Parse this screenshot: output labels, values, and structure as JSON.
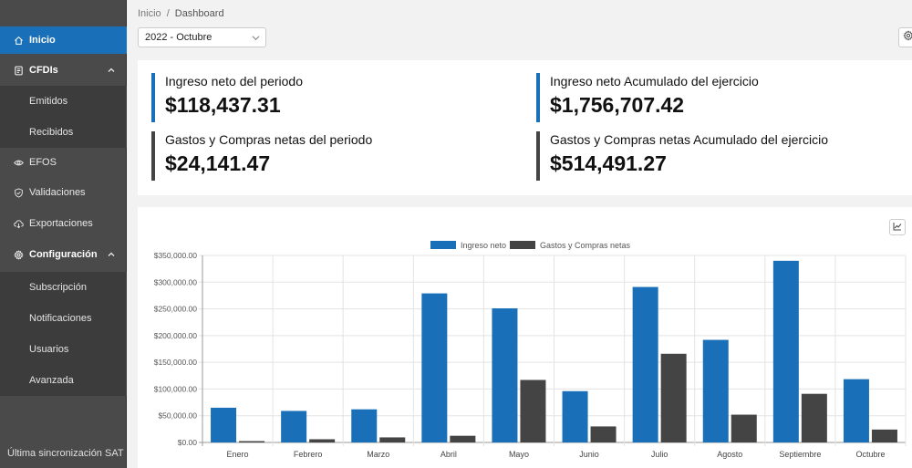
{
  "sidebar": {
    "items": [
      {
        "label": "Inicio",
        "icon": "home-icon",
        "active": true
      },
      {
        "label": "CFDIs",
        "icon": "document-icon",
        "bold": true,
        "expanded": true
      },
      {
        "label": "Emitidos",
        "sub": true
      },
      {
        "label": "Recibidos",
        "sub": true
      },
      {
        "label": "EFOS",
        "icon": "eye-icon"
      },
      {
        "label": "Validaciones",
        "icon": "shield-check-icon"
      },
      {
        "label": "Exportaciones",
        "icon": "cloud-download-icon"
      },
      {
        "label": "Configuración",
        "icon": "gear-icon",
        "bold": true,
        "expanded": true
      },
      {
        "label": "Subscripción",
        "sub": true
      },
      {
        "label": "Notificaciones",
        "sub": true
      },
      {
        "label": "Usuarios",
        "sub": true
      },
      {
        "label": "Avanzada",
        "sub": true
      }
    ],
    "footer": "Última sincronización SAT"
  },
  "breadcrumb": {
    "root": "Inicio",
    "separator": "/",
    "current": "Dashboard"
  },
  "period_select": {
    "value": "2022 - Octubre"
  },
  "kpis": [
    {
      "label": "Ingreso neto del periodo",
      "value": "$118,437.31",
      "color": "#1a70b8"
    },
    {
      "label": "Ingreso neto Acumulado del ejercicio",
      "value": "$1,756,707.42",
      "color": "#1a70b8"
    },
    {
      "label": "Gastos y Compras netas del periodo",
      "value": "$24,141.47",
      "color": "#444444"
    },
    {
      "label": "Gastos y Compras netas Acumulado del ejercicio",
      "value": "$514,491.27",
      "color": "#444444"
    }
  ],
  "colors": {
    "accent": "#1a70b8",
    "dark": "#444444"
  },
  "chart_data": {
    "type": "bar",
    "categories": [
      "Enero",
      "Febrero",
      "Marzo",
      "Abril",
      "Mayo",
      "Junio",
      "Julio",
      "Agosto",
      "Septiembre",
      "Octubre"
    ],
    "series": [
      {
        "name": "Ingreso neto",
        "color": "#1a70b8",
        "values": [
          65000,
          59000,
          62000,
          279000,
          251000,
          96000,
          291000,
          192000,
          340000,
          118437.31
        ]
      },
      {
        "name": "Gastos y Compras netas",
        "color": "#444444",
        "values": [
          2500,
          6000,
          9500,
          12500,
          117000,
          30000,
          166000,
          52000,
          91000,
          24141.47
        ]
      }
    ],
    "yticks": [
      "$0.00",
      "$50,000.00",
      "$100,000.00",
      "$150,000.00",
      "$200,000.00",
      "$250,000.00",
      "$300,000.00",
      "$350,000.00"
    ],
    "ylim": [
      0,
      350000
    ],
    "legend": "top-center",
    "grid": true
  }
}
